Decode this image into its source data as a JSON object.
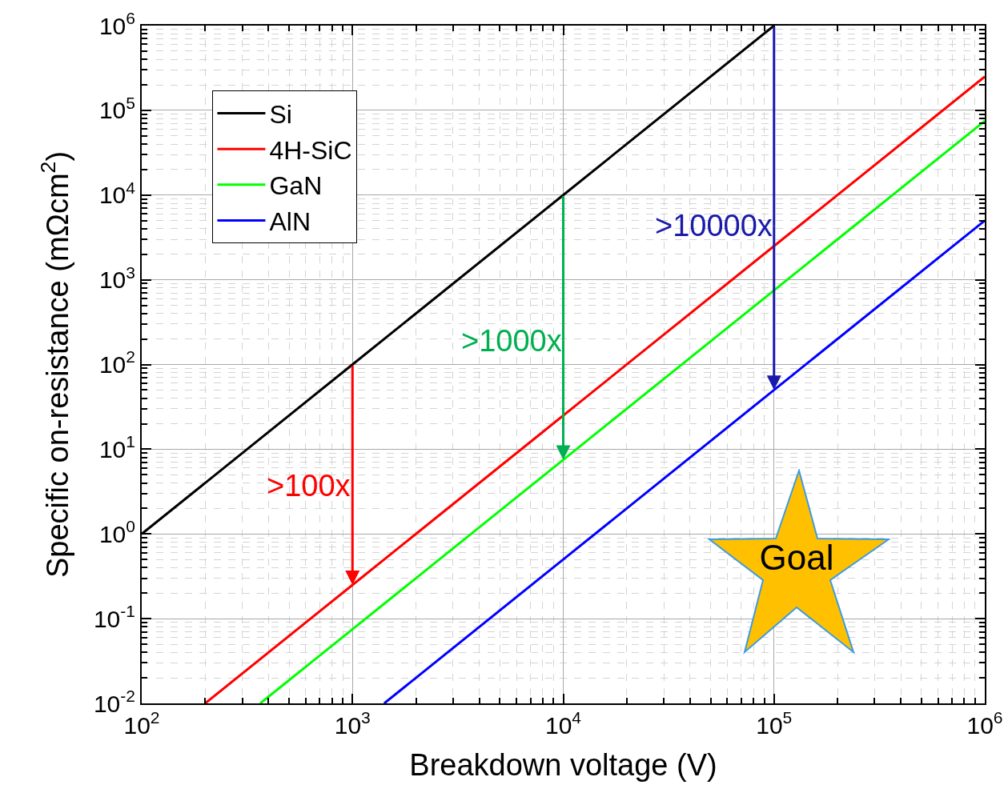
{
  "chart_data": {
    "type": "line",
    "xlabel": "Breakdown voltage (V)",
    "ylabel": "Specific on-resistance (mΩcm$^{2}$)",
    "log": "xy",
    "grid": true,
    "legend": "top left",
    "marker": "none",
    "line_style": "solid",
    "xlim": [
      100,
      1000000
    ],
    "ylim": [
      0.01,
      1000000
    ],
    "xticks": [
      {
        "value": 100,
        "label": "10$^{2}$"
      },
      {
        "value": 1000,
        "label": "10$^{3}$"
      },
      {
        "value": 10000,
        "label": "10$^{4}$"
      },
      {
        "value": 100000,
        "label": "10$^{5}$"
      },
      {
        "value": 1000000,
        "label": "10$^{6}$"
      }
    ],
    "yticks": [
      {
        "value": 0.01,
        "label": "10$^{-2}$"
      },
      {
        "value": 0.1,
        "label": "10$^{-1}$"
      },
      {
        "value": 1,
        "label": "10$^{0}$"
      },
      {
        "value": 10,
        "label": "10$^{1}$"
      },
      {
        "value": 100,
        "label": "10$^{2}$"
      },
      {
        "value": 1000,
        "label": "10$^{3}$"
      },
      {
        "value": 10000,
        "label": "10$^{4}$"
      },
      {
        "value": 100000,
        "label": "10$^{5}$"
      },
      {
        "value": 1000000,
        "label": "10$^{6}$"
      }
    ],
    "series": [
      {
        "name": "Si",
        "color": "#000000",
        "x": [
          100,
          1000,
          10000,
          100000
        ],
        "values": [
          1,
          100,
          10000,
          1000000
        ]
      },
      {
        "name": "4H-SiC",
        "color": "#ff0000",
        "x": [
          200,
          1000,
          10000,
          100000,
          1000000
        ],
        "values": [
          0.01,
          0.25,
          25,
          2500,
          250000
        ]
      },
      {
        "name": "GaN",
        "color": "#00ff00",
        "x": [
          365,
          1000,
          10000,
          100000,
          1000000
        ],
        "values": [
          0.01,
          0.075,
          7.5,
          750,
          75000
        ]
      },
      {
        "name": "AlN",
        "color": "#0000ff",
        "x": [
          1414,
          10000,
          100000,
          1000000
        ],
        "values": [
          0.01,
          0.5,
          50,
          5000
        ]
      }
    ],
    "annotations": [
      {
        "text": ">100x",
        "x": 1000,
        "y": 0.25
      },
      {
        "text": ">1000x",
        "x": 10000,
        "y": 7.5
      },
      {
        "text": ">10000x",
        "x": 100000,
        "y": 50
      },
      "Goal"
    ]
  }
}
